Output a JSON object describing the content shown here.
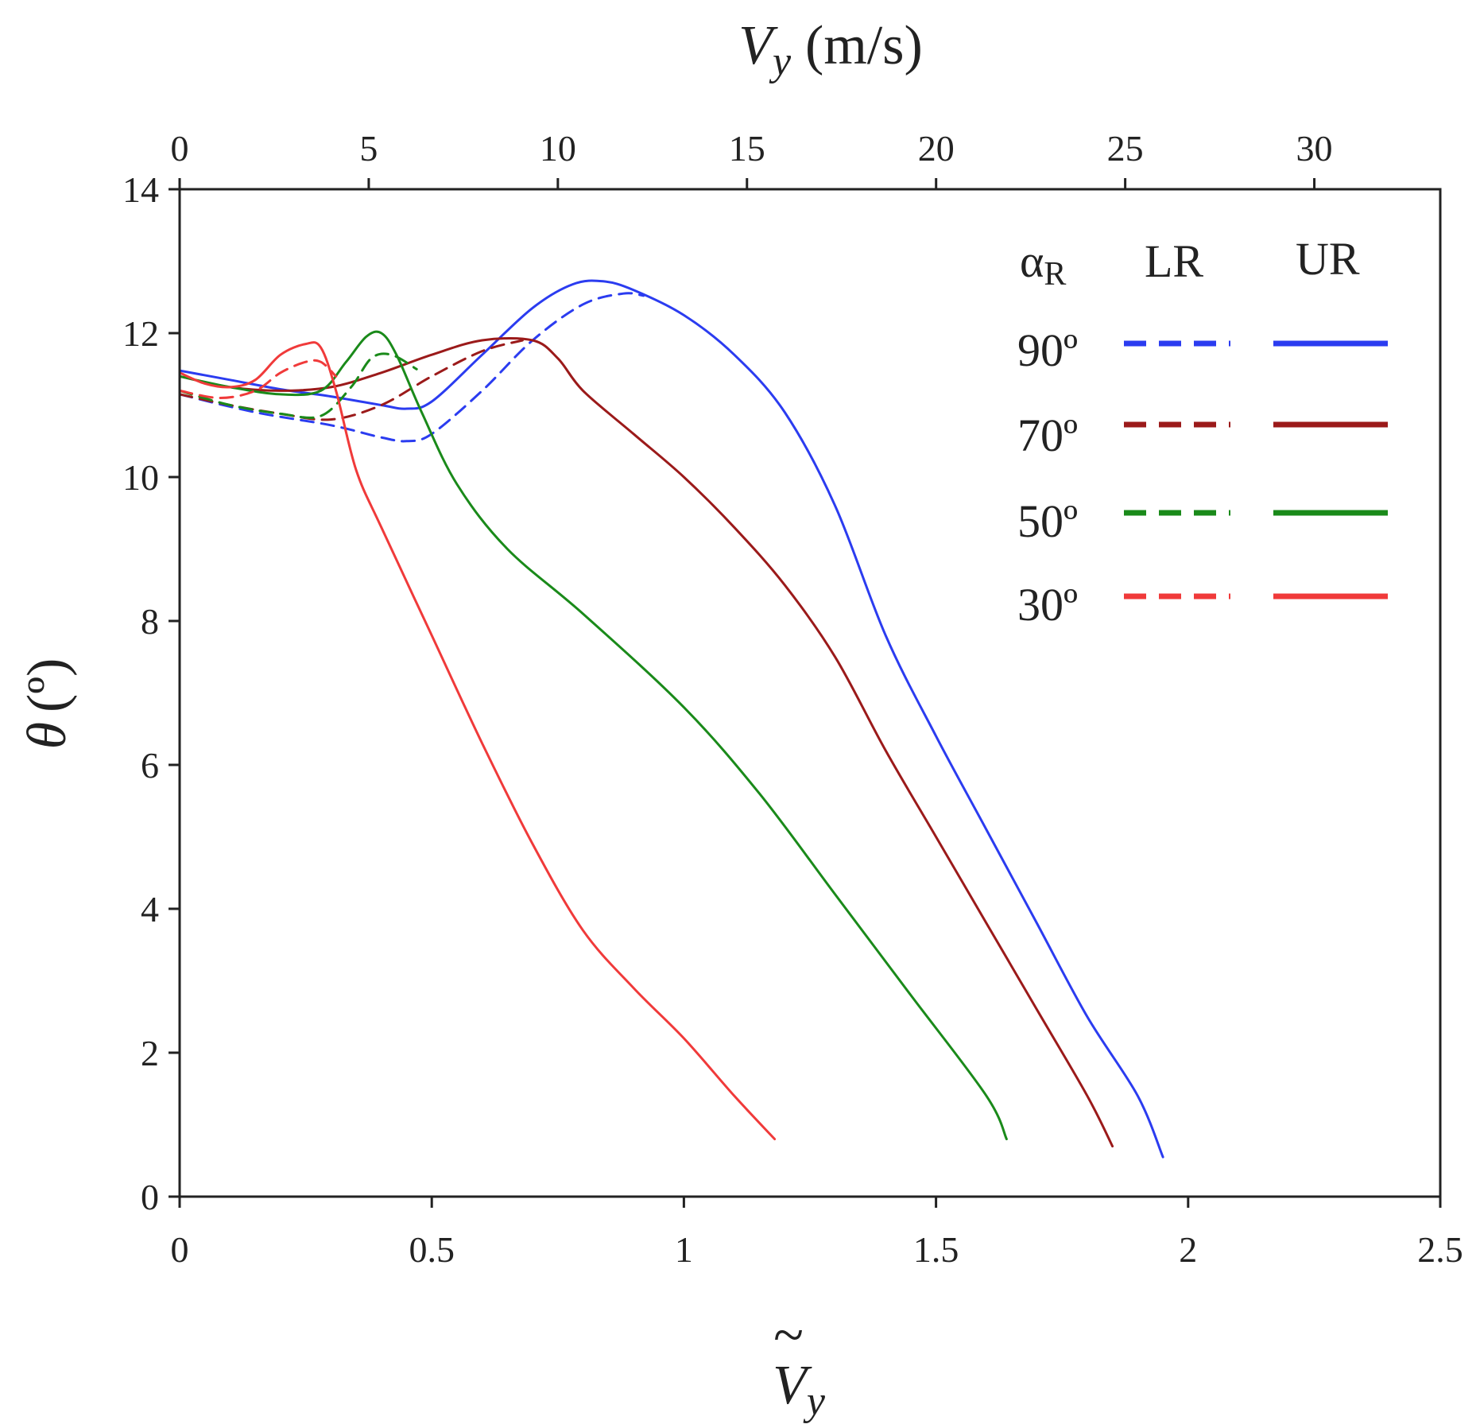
{
  "chart_data": {
    "type": "line",
    "xlabel": "Ṽy",
    "xlabel_symbol": "V",
    "xlabel_subscript": "y",
    "xlabel_accent": "~",
    "ylabel": "θ (º)",
    "ylabel_symbol": "θ",
    "ylabel_unit": "(º)",
    "x2label": "Vy (m/s)",
    "x2label_symbol": "V",
    "x2label_subscript": "y",
    "x2label_unit": "(m/s)",
    "xlim": [
      0,
      2.5
    ],
    "ylim": [
      0,
      14
    ],
    "x2lim": [
      0,
      33.33
    ],
    "xticks": [
      "0",
      "0.5",
      "1",
      "1.5",
      "2",
      "2.5"
    ],
    "yticks": [
      "0",
      "2",
      "4",
      "6",
      "8",
      "10",
      "12",
      "14"
    ],
    "x2ticks": [
      "0",
      "5",
      "10",
      "15",
      "20",
      "25",
      "30"
    ],
    "xtick_values": [
      0,
      0.5,
      1,
      1.5,
      2,
      2.5
    ],
    "ytick_values": [
      0,
      2,
      4,
      6,
      8,
      10,
      12,
      14
    ],
    "x2tick_values": [
      0,
      5,
      10,
      15,
      20,
      25,
      30
    ],
    "grid": false,
    "legend": {
      "placement": "top-right",
      "header_alpha": "α",
      "header_alpha_sub": "R",
      "header_lr": "LR",
      "header_ur": "UR",
      "rows": [
        "90º",
        "70º",
        "50º",
        "30º"
      ]
    },
    "series": [
      {
        "name": "90º LR",
        "alpha": "90º",
        "type": "LR",
        "color": "#2b3cf0",
        "dashed": true,
        "x": [
          0,
          0.15,
          0.3,
          0.4,
          0.45,
          0.5,
          0.6,
          0.7,
          0.8,
          0.88,
          0.92
        ],
        "y": [
          11.15,
          10.9,
          10.72,
          10.55,
          10.5,
          10.6,
          11.2,
          11.9,
          12.4,
          12.55,
          12.52
        ]
      },
      {
        "name": "90º UR",
        "alpha": "90º",
        "type": "UR",
        "color": "#2b3cf0",
        "dashed": false,
        "x": [
          0,
          0.1,
          0.2,
          0.3,
          0.4,
          0.45,
          0.5,
          0.6,
          0.7,
          0.78,
          0.84,
          0.9,
          1.0,
          1.1,
          1.2,
          1.3,
          1.4,
          1.5,
          1.6,
          1.7,
          1.8,
          1.9,
          1.95
        ],
        "y": [
          11.48,
          11.35,
          11.22,
          11.12,
          11.0,
          10.95,
          11.05,
          11.7,
          12.35,
          12.68,
          12.72,
          12.6,
          12.25,
          11.7,
          10.9,
          9.6,
          7.8,
          6.4,
          5.1,
          3.8,
          2.5,
          1.4,
          0.55
        ]
      },
      {
        "name": "70º LR",
        "alpha": "70º",
        "type": "LR",
        "color": "#9b1a1a",
        "dashed": true,
        "x": [
          0,
          0.1,
          0.2,
          0.3,
          0.4,
          0.5,
          0.6,
          0.68
        ],
        "y": [
          11.15,
          11.0,
          10.88,
          10.8,
          11.0,
          11.4,
          11.75,
          11.9
        ]
      },
      {
        "name": "70º UR",
        "alpha": "70º",
        "type": "UR",
        "color": "#9b1a1a",
        "dashed": false,
        "x": [
          0,
          0.1,
          0.2,
          0.3,
          0.4,
          0.5,
          0.6,
          0.7,
          0.75,
          0.8,
          0.9,
          1.0,
          1.1,
          1.2,
          1.3,
          1.4,
          1.5,
          1.6,
          1.7,
          1.8,
          1.85
        ],
        "y": [
          11.4,
          11.25,
          11.2,
          11.25,
          11.45,
          11.7,
          11.9,
          11.9,
          11.65,
          11.2,
          10.6,
          10.0,
          9.3,
          8.5,
          7.5,
          6.2,
          5.0,
          3.8,
          2.6,
          1.4,
          0.7
        ]
      },
      {
        "name": "50º LR",
        "alpha": "50º",
        "type": "LR",
        "color": "#1a8a1a",
        "dashed": true,
        "x": [
          0,
          0.1,
          0.2,
          0.28,
          0.34,
          0.38,
          0.42,
          0.47
        ],
        "y": [
          11.2,
          11.0,
          10.88,
          10.85,
          11.25,
          11.65,
          11.7,
          11.5
        ]
      },
      {
        "name": "50º UR",
        "alpha": "50º",
        "type": "UR",
        "color": "#1a8a1a",
        "dashed": false,
        "x": [
          0,
          0.1,
          0.2,
          0.28,
          0.33,
          0.37,
          0.4,
          0.43,
          0.48,
          0.55,
          0.65,
          0.8,
          1.0,
          1.15,
          1.3,
          1.45,
          1.6,
          1.64
        ],
        "y": [
          11.4,
          11.25,
          11.15,
          11.2,
          11.6,
          11.95,
          12.0,
          11.7,
          10.9,
          9.9,
          9.0,
          8.1,
          6.8,
          5.6,
          4.2,
          2.8,
          1.4,
          0.8
        ]
      },
      {
        "name": "30º LR",
        "alpha": "30º",
        "type": "LR",
        "color": "#f03a3a",
        "dashed": true,
        "x": [
          0,
          0.08,
          0.15,
          0.2,
          0.25,
          0.28,
          0.31
        ],
        "y": [
          11.2,
          11.1,
          11.2,
          11.45,
          11.6,
          11.6,
          11.4
        ]
      },
      {
        "name": "30º UR",
        "alpha": "30º",
        "type": "UR",
        "color": "#f03a3a",
        "dashed": false,
        "x": [
          0,
          0.05,
          0.1,
          0.15,
          0.2,
          0.25,
          0.28,
          0.31,
          0.35,
          0.4,
          0.5,
          0.6,
          0.7,
          0.8,
          0.9,
          1.0,
          1.1,
          1.18
        ],
        "y": [
          11.45,
          11.3,
          11.25,
          11.35,
          11.7,
          11.85,
          11.8,
          11.2,
          10.1,
          9.3,
          7.8,
          6.3,
          4.9,
          3.7,
          2.9,
          2.2,
          1.4,
          0.8
        ]
      }
    ]
  }
}
